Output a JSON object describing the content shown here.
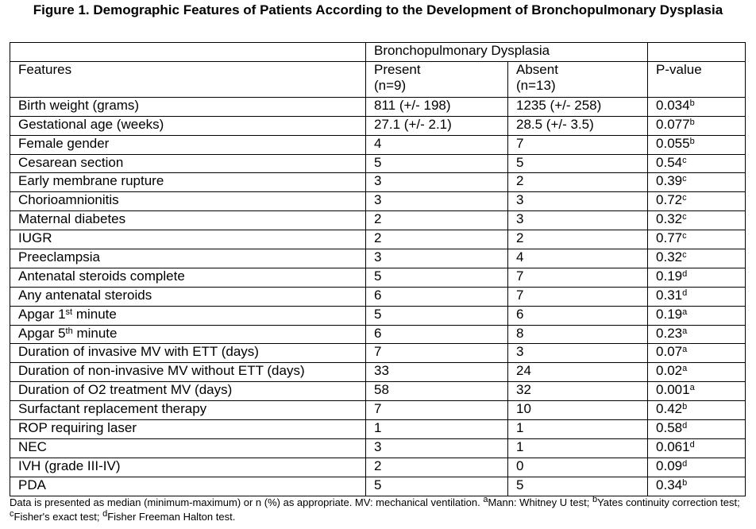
{
  "title": "Figure 1. Demographic Features of Patients According to the Development of Bronchopulmonary Dysplasia",
  "header": {
    "group_label": "Bronchopulmonary Dysplasia",
    "col_features": "Features",
    "col_present": "Present",
    "col_present_n": "(n=9)",
    "col_absent": "Absent",
    "col_absent_n": "(n=13)",
    "col_pvalue": "P-value"
  },
  "rows": [
    {
      "feature": "Birth weight (grams)",
      "present": "811 (+/- 198)",
      "absent": "1235 (+/- 258)",
      "p": "0.034",
      "sup": "b"
    },
    {
      "feature": "Gestational age (weeks)",
      "present": "27.1 (+/- 2.1)",
      "absent": "28.5 (+/- 3.5)",
      "p": "0.077",
      "sup": "b"
    },
    {
      "feature": "Female gender",
      "present": "4",
      "absent": "7",
      "p": "0.055",
      "sup": "b"
    },
    {
      "feature": "Cesarean section",
      "present": "5",
      "absent": "5",
      "p": "0.54",
      "sup": "c"
    },
    {
      "feature": "Early membrane rupture",
      "present": "3",
      "absent": "2",
      "p": "0.39",
      "sup": "c"
    },
    {
      "feature": "Chorioamnionitis",
      "present": "3",
      "absent": "3",
      "p": "0.72",
      "sup": "c"
    },
    {
      "feature": "Maternal diabetes",
      "present": "2",
      "absent": "3",
      "p": "0.32",
      "sup": "c"
    },
    {
      "feature": "IUGR",
      "present": "2",
      "absent": "2",
      "p": "0.77",
      "sup": "c"
    },
    {
      "feature": "Preeclampsia",
      "present": "3",
      "absent": "4",
      "p": "0.32",
      "sup": "c"
    },
    {
      "feature": "Antenatal steroids complete",
      "present": "5",
      "absent": "7",
      "p": "0.19",
      "sup": "d"
    },
    {
      "feature": "Any antenatal steroids",
      "present": "6",
      "absent": "7",
      "p": "0.31",
      "sup": "d"
    },
    {
      "feature": "Apgar 1",
      "feature_sup": "st",
      "feature_tail": " minute",
      "present": "5",
      "absent": "6",
      "p": "0.19",
      "sup": "a"
    },
    {
      "feature": "Apgar 5",
      "feature_sup": "th",
      "feature_tail": " minute",
      "present": "6",
      "absent": "8",
      "p": "0.23",
      "sup": "a"
    },
    {
      "feature": "Duration of invasive MV with ETT (days)",
      "present": "7",
      "absent": "3",
      "p": "0.07",
      "sup": "a"
    },
    {
      "feature": "Duration of non-invasive MV without ETT (days)",
      "present": "33",
      "absent": "24",
      "p": "0.02",
      "sup": "a"
    },
    {
      "feature": "Duration of O2 treatment MV (days)",
      "present": "58",
      "absent": "32",
      "p": "0.001",
      "sup": "a"
    },
    {
      "feature": "Surfactant replacement therapy",
      "present": "7",
      "absent": "10",
      "p": "0.42",
      "sup": "b"
    },
    {
      "feature": "ROP requiring laser",
      "present": "1",
      "absent": "1",
      "p": "0.58",
      "sup": "d"
    },
    {
      "feature": "NEC",
      "present": "3",
      "absent": "1",
      "p": "0.061",
      "sup": "d"
    },
    {
      "feature": "IVH (grade III-IV)",
      "present": "2",
      "absent": "0",
      "p": "0.09",
      "sup": "d"
    },
    {
      "feature": "PDA",
      "present": "5",
      "absent": "5",
      "p": "0.34",
      "sup": "b"
    }
  ],
  "footnote": {
    "main": "Data is presented as median (minimum-maximum) or n (%) as appropriate. MV: mechanical ventilation. ",
    "a_sup": "a",
    "a_text": "Mann: Whitney U test; ",
    "b_sup": "b",
    "b_text": "Yates continuity correction test; ",
    "c_sup": "c",
    "c_text": "Fisher's exact test; ",
    "d_sup": "d",
    "d_text": "Fisher Freeman Halton test."
  }
}
